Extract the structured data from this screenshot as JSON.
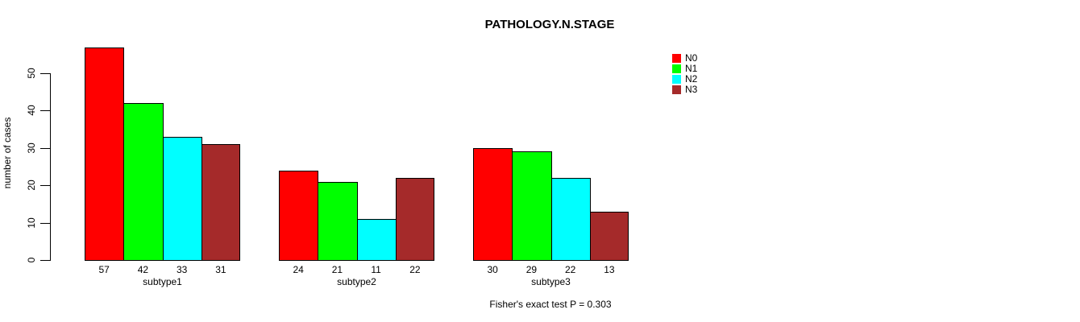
{
  "title": "PATHOLOGY.N.STAGE",
  "ylabel": "number of cases",
  "footer": "Fisher's exact test P = 0.303",
  "chart_data": {
    "type": "bar",
    "title": "PATHOLOGY.N.STAGE",
    "xlabel": "",
    "ylabel": "number of cases",
    "categories": [
      "subtype1",
      "subtype2",
      "subtype3"
    ],
    "series": [
      {
        "name": "N0",
        "color": "#FF0000",
        "values": [
          57,
          24,
          30
        ]
      },
      {
        "name": "N1",
        "color": "#00FF00",
        "values": [
          42,
          21,
          29
        ]
      },
      {
        "name": "N2",
        "color": "#00FFFF",
        "values": [
          33,
          11,
          22
        ]
      },
      {
        "name": "N3",
        "color": "#A52A2A",
        "values": [
          31,
          22,
          13
        ]
      }
    ],
    "yticks": [
      0,
      10,
      20,
      30,
      40,
      50
    ],
    "ylim": [
      0,
      57
    ],
    "grid": false,
    "bar_value_labels_shown": true,
    "legend_position": "top-right",
    "annotation": "Fisher's exact test P = 0.303",
    "bar_border_color": "#000000",
    "background_color": "#FFFFFF"
  }
}
